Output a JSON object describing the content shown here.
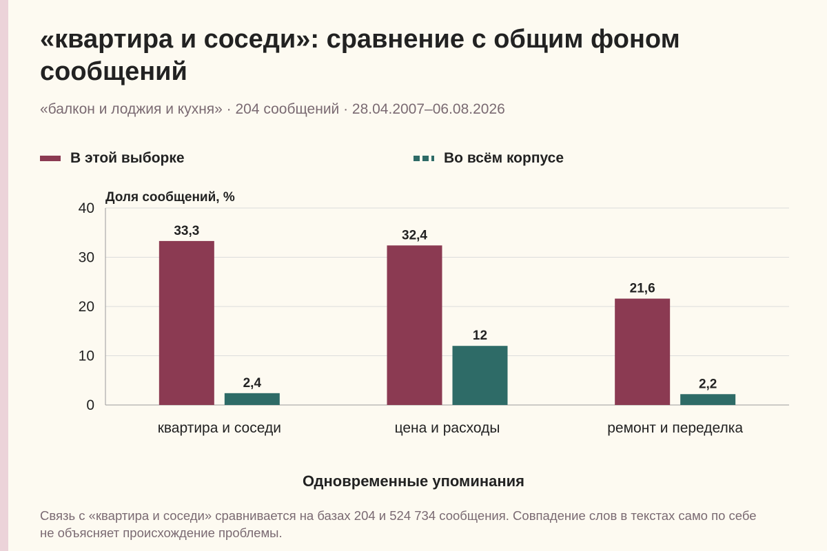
{
  "title": "«квартира и соседи»: сравнение с общим фоном сообщений",
  "subtitle": "«балкон и лоджия и кухня» · 204 сообщений · 28.04.2007–06.08.2026",
  "legend": {
    "sample_label": "В этой выборке",
    "corpus_label": "Во всём корпусе"
  },
  "colors": {
    "sample": "#8b3a52",
    "corpus": "#2e6b67",
    "grid": "#dcdcdc",
    "background": "#fdfaf1"
  },
  "chart_data": {
    "type": "bar",
    "ylabel": "Доля сообщений, %",
    "xlabel": "Одновременные упоминания",
    "ylim": [
      0,
      40
    ],
    "yticks": [
      "0",
      "10",
      "20",
      "30",
      "40"
    ],
    "grid": true,
    "legend_position": "top",
    "categories": [
      "квартира и соседи",
      "цена и расходы",
      "ремонт и переделка"
    ],
    "series": [
      {
        "name": "В этой выборке",
        "values": [
          33.3,
          32.4,
          21.6
        ],
        "labels": [
          "33,3",
          "32,4",
          "21,6"
        ]
      },
      {
        "name": "Во всём корпусе",
        "values": [
          2.4,
          12,
          2.2
        ],
        "labels": [
          "2,4",
          "12",
          "2,2"
        ]
      }
    ]
  },
  "footnote": "Связь с «квартира и соседи» сравнивается на базах 204 и 524 734 сообщения. Совпадение слов в текстах само по себе не объясняет происхождение проблемы."
}
